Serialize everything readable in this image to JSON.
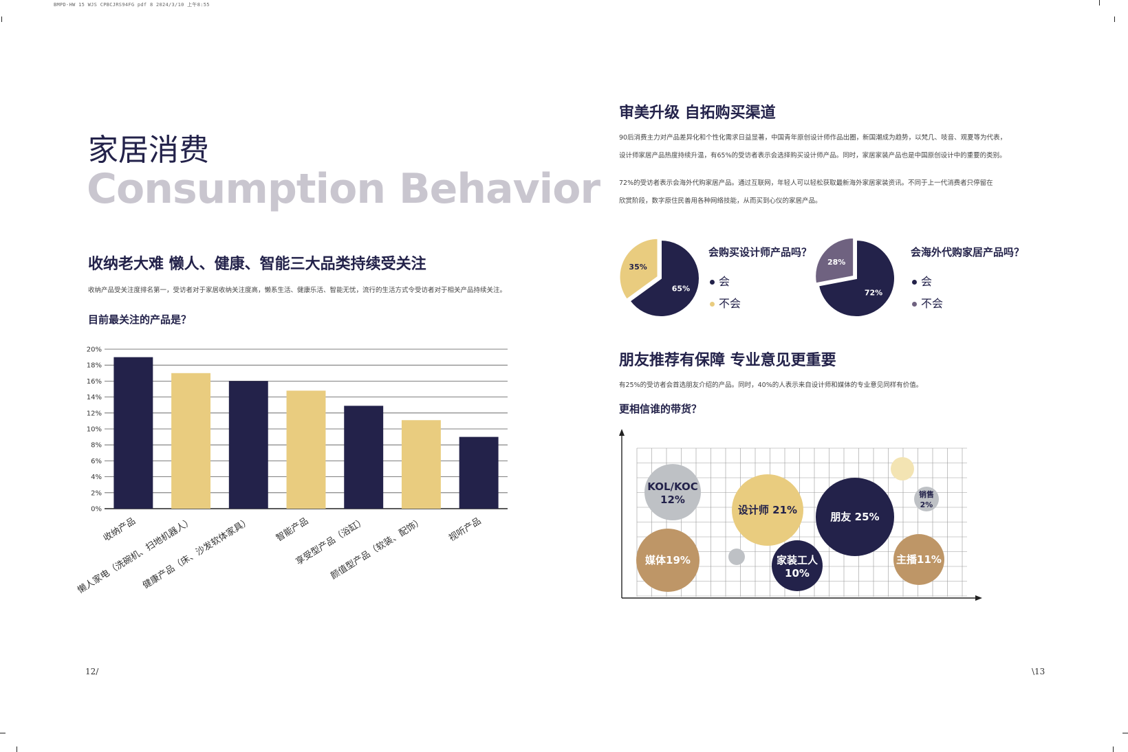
{
  "header": {
    "file_line": "BMPD-HW 15 WJS CPBCJRS94FG pdf 8 2024/3/10 上午8:55"
  },
  "left": {
    "title_cn": "家居消费",
    "title_en": "Consumption Behavior",
    "section1": {
      "heading": "收纳老大难 懒人、健康、智能三大品类持续受关注",
      "body": "收纳产品受关注度排名第一，受访者对于家居收纳关注度高，懒系生活、健康乐活、智能无忧，流行的生活方式令受访者对于相关产品持续关注。",
      "question": "目前最关注的产品是？"
    },
    "page_number": "12/"
  },
  "right": {
    "section1": {
      "heading": "审美升级 自拓购买渠道",
      "para1_line1": "90后消费主力对产品差异化和个性化需求日益显著，中国青年原创设计师作品出圈，新国潮成为趋势，以梵几、吱音、观夏等为代表，",
      "para1_line2": "设计师家居产品热度持续升温，有65%的受访者表示会选择购买设计师产品。同时，家居家装产品也是中国原创设计中的重要的类别。",
      "para2_line1": "72%的受访者表示会海外代购家居产品。通过互联网，年轻人可以轻松获取最新海外家居家装资讯。不同于上一代消费者只停留在",
      "para2_line2": "欣赏阶段，数字原住民善用各种网络技能，从而买到心仪的家居产品。"
    },
    "pie1": {
      "question": "会购买设计师产品吗？",
      "legend_yes": "会",
      "legend_no": "不会"
    },
    "pie2": {
      "question": "会海外代购家居产品吗？",
      "legend_yes": "会",
      "legend_no": "不会"
    },
    "section2": {
      "heading": "朋友推荐有保障 专业意见更重要",
      "body": "有25%的受访者会首选朋友介绍的产品。同时，40%的人表示来自设计师和媒体的专业意见同样有价值。",
      "question": "更相信谁的带货？"
    },
    "page_number": "\\13"
  },
  "colors": {
    "navy": "#23224a",
    "yellow": "#e9cc7f",
    "purple": "#6f6280",
    "gray": "#bec1c5",
    "tan": "#be9667"
  },
  "chart_data": [
    {
      "type": "bar",
      "categories": [
        "收纳产品",
        "懒人家电（洗碗机、扫地机器人）",
        "健康产品（床、沙发软体家具）",
        "智能产品",
        "享受型产品（浴缸）",
        "颜值型产品（软装、配饰）",
        "视听产品"
      ],
      "values": [
        19,
        17,
        16,
        14.8,
        12.9,
        11.1,
        9
      ],
      "ytick_labels": [
        "0%",
        "2%",
        "4%",
        "6%",
        "8%",
        "10%",
        "12%",
        "14%",
        "16%",
        "18%",
        "20%"
      ],
      "ylim": [
        0,
        20
      ],
      "grid": true,
      "colors": [
        "#23224a",
        "#e9cc7f",
        "#23224a",
        "#e9cc7f",
        "#23224a",
        "#e9cc7f",
        "#23224a"
      ]
    },
    {
      "type": "pie",
      "labels": [
        "会",
        "不会"
      ],
      "values": [
        65,
        35
      ],
      "value_labels": [
        "65%",
        "35%"
      ],
      "colors": [
        "#23224a",
        "#e9cc7f"
      ]
    },
    {
      "type": "pie",
      "labels": [
        "会",
        "不会"
      ],
      "values": [
        72,
        28
      ],
      "value_labels": [
        "72%",
        "28%"
      ],
      "colors": [
        "#23224a",
        "#6f6280"
      ]
    },
    {
      "type": "scatter",
      "subtype": "bubble",
      "grid": true,
      "points": [
        {
          "label": "KOL/KOC",
          "value_label": "12%",
          "value": 12,
          "color": "#bec1c5"
        },
        {
          "label": "媒体",
          "value_label": "19%",
          "value": 19,
          "color": "#be9667"
        },
        {
          "label": "设计师",
          "value_label": "21%",
          "value": 21,
          "color": "#e9cc7f"
        },
        {
          "label": "家装工人",
          "value_label": "10%",
          "value": 10,
          "color": "#23224a"
        },
        {
          "label": "朋友",
          "value_label": "25%",
          "value": 25,
          "color": "#23224a"
        },
        {
          "label": "销售",
          "value_label": "2%",
          "value": 2,
          "color": "#bec1c5"
        },
        {
          "label": "主播",
          "value_label": "11%",
          "value": 11,
          "color": "#be9667"
        },
        {
          "label": "",
          "value_label": "",
          "value": null,
          "color": "#f3e4b3"
        },
        {
          "label": "",
          "value_label": "",
          "value": null,
          "color": "#bec1c5"
        }
      ]
    }
  ]
}
